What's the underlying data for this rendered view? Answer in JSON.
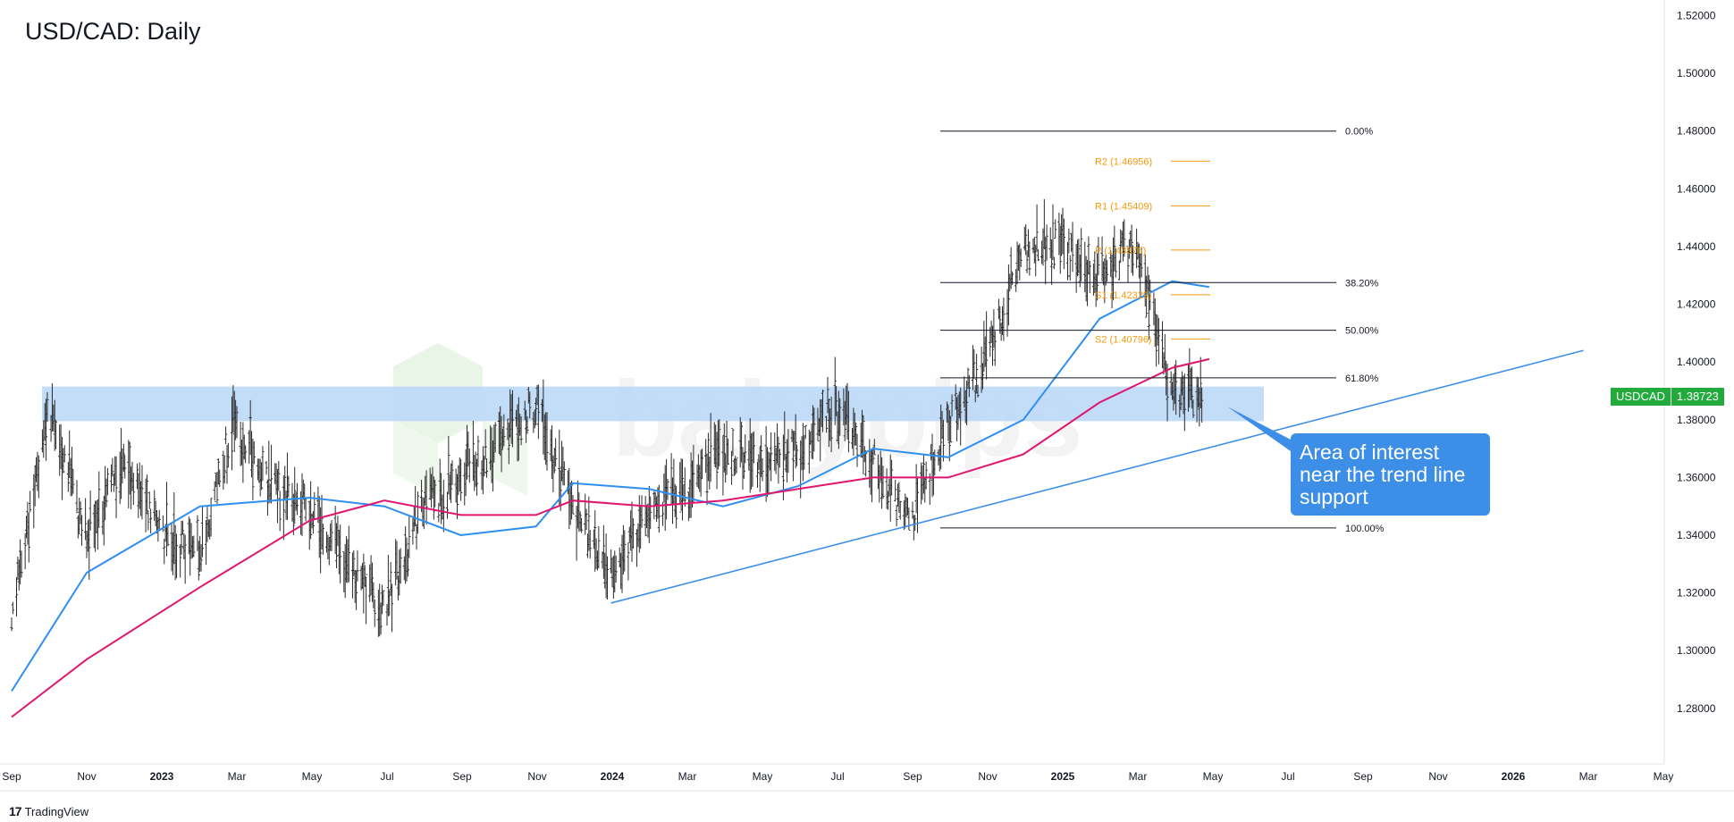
{
  "title": "USD/CAD: Daily",
  "brand": "TradingView",
  "callout_text": "Area of interest near the trend line support",
  "watermark": "babypips",
  "symbol": "USDCAD",
  "last_price": "1.38723",
  "colors": {
    "sma_fast": "#2f8ff0",
    "sma_slow": "#e0166e",
    "trendline": "#3c8fe8",
    "zone": "#b8d7f8",
    "fib": "#131722",
    "pivot": "#f59a0c",
    "candle": "#2a2a2a",
    "badge": "#22ab3c"
  },
  "chart_data": {
    "type": "line",
    "title": "USD/CAD: Daily",
    "ylim": [
      1.262,
      1.522
    ],
    "y_ticks": [
      "1.28000",
      "1.30000",
      "1.32000",
      "1.34000",
      "1.36000",
      "1.38000",
      "1.40000",
      "1.42000",
      "1.44000",
      "1.46000",
      "1.48000",
      "1.50000",
      "1.52000"
    ],
    "x_ticks": [
      "Sep",
      "Nov",
      "2023",
      "Mar",
      "May",
      "Jul",
      "Sep",
      "Nov",
      "2024",
      "Mar",
      "May",
      "Jul",
      "Sep",
      "Nov",
      "2025",
      "Mar",
      "May",
      "Jul",
      "Sep",
      "Nov",
      "2026",
      "Mar",
      "May"
    ],
    "price_series": {
      "name": "USDCAD",
      "approx_path": [
        {
          "x": "2022-09",
          "y": 1.31
        },
        {
          "x": "2022-10",
          "y": 1.385
        },
        {
          "x": "2022-11",
          "y": 1.34
        },
        {
          "x": "2022-12",
          "y": 1.365
        },
        {
          "x": "2023-01",
          "y": 1.34
        },
        {
          "x": "2023-02",
          "y": 1.335
        },
        {
          "x": "2023-03",
          "y": 1.38
        },
        {
          "x": "2023-04",
          "y": 1.355
        },
        {
          "x": "2023-05",
          "y": 1.35
        },
        {
          "x": "2023-06",
          "y": 1.33
        },
        {
          "x": "2023-07",
          "y": 1.315
        },
        {
          "x": "2023-08",
          "y": 1.35
        },
        {
          "x": "2023-09",
          "y": 1.36
        },
        {
          "x": "2023-10",
          "y": 1.37
        },
        {
          "x": "2023-11",
          "y": 1.385
        },
        {
          "x": "2023-12",
          "y": 1.35
        },
        {
          "x": "2024-01",
          "y": 1.325
        },
        {
          "x": "2024-02",
          "y": 1.35
        },
        {
          "x": "2024-03",
          "y": 1.355
        },
        {
          "x": "2024-04",
          "y": 1.37
        },
        {
          "x": "2024-05",
          "y": 1.365
        },
        {
          "x": "2024-06",
          "y": 1.37
        },
        {
          "x": "2024-07",
          "y": 1.385
        },
        {
          "x": "2024-08",
          "y": 1.365
        },
        {
          "x": "2024-09",
          "y": 1.345
        },
        {
          "x": "2024-10",
          "y": 1.38
        },
        {
          "x": "2024-11",
          "y": 1.4
        },
        {
          "x": "2024-12",
          "y": 1.44
        },
        {
          "x": "2025-01",
          "y": 1.44
        },
        {
          "x": "2025-02",
          "y": 1.43
        },
        {
          "x": "2025-03",
          "y": 1.44
        },
        {
          "x": "2025-04",
          "y": 1.39
        },
        {
          "x": "2025-04-25",
          "y": 1.387
        }
      ]
    },
    "series": [
      {
        "name": "SMA fast",
        "color": "#2f8ff0",
        "values": [
          {
            "x": "2022-09",
            "y": 1.286
          },
          {
            "x": "2022-11",
            "y": 1.327
          },
          {
            "x": "2023-02",
            "y": 1.35
          },
          {
            "x": "2023-05",
            "y": 1.353
          },
          {
            "x": "2023-07",
            "y": 1.35
          },
          {
            "x": "2023-09",
            "y": 1.34
          },
          {
            "x": "2023-11",
            "y": 1.343
          },
          {
            "x": "2023-12",
            "y": 1.358
          },
          {
            "x": "2024-02",
            "y": 1.356
          },
          {
            "x": "2024-04",
            "y": 1.35
          },
          {
            "x": "2024-06",
            "y": 1.357
          },
          {
            "x": "2024-08",
            "y": 1.37
          },
          {
            "x": "2024-10",
            "y": 1.367
          },
          {
            "x": "2024-12",
            "y": 1.38
          },
          {
            "x": "2025-02",
            "y": 1.415
          },
          {
            "x": "2025-04",
            "y": 1.428
          },
          {
            "x": "2025-05",
            "y": 1.426
          }
        ]
      },
      {
        "name": "SMA slow",
        "color": "#e0166e",
        "values": [
          {
            "x": "2022-09",
            "y": 1.277
          },
          {
            "x": "2022-11",
            "y": 1.297
          },
          {
            "x": "2023-02",
            "y": 1.322
          },
          {
            "x": "2023-05",
            "y": 1.345
          },
          {
            "x": "2023-07",
            "y": 1.352
          },
          {
            "x": "2023-09",
            "y": 1.347
          },
          {
            "x": "2023-11",
            "y": 1.347
          },
          {
            "x": "2023-12",
            "y": 1.352
          },
          {
            "x": "2024-02",
            "y": 1.35
          },
          {
            "x": "2024-04",
            "y": 1.352
          },
          {
            "x": "2024-06",
            "y": 1.356
          },
          {
            "x": "2024-08",
            "y": 1.36
          },
          {
            "x": "2024-10",
            "y": 1.36
          },
          {
            "x": "2024-12",
            "y": 1.368
          },
          {
            "x": "2025-02",
            "y": 1.386
          },
          {
            "x": "2025-04",
            "y": 1.398
          },
          {
            "x": "2025-05",
            "y": 1.401
          }
        ]
      }
    ],
    "fibonacci": [
      {
        "label": "0.00%",
        "value": 1.48
      },
      {
        "label": "38.20%",
        "value": 1.4275
      },
      {
        "label": "50.00%",
        "value": 1.411
      },
      {
        "label": "61.80%",
        "value": 1.3945
      },
      {
        "label": "100.00%",
        "value": 1.3425
      }
    ],
    "pivots": [
      {
        "label": "R2 (1.46956)",
        "value": 1.46956
      },
      {
        "label": "R1 (1.45409)",
        "value": 1.45409
      },
      {
        "label": "P (1.43876)",
        "value": 1.43876
      },
      {
        "label": "S1 (1.42329)",
        "value": 1.42329
      },
      {
        "label": "S2 (1.40796)",
        "value": 1.40796
      }
    ],
    "zone": {
      "low": 1.3795,
      "high": 1.3915,
      "from": "2022-10",
      "to": "2025-06"
    },
    "trendline": {
      "from": {
        "x": "2024-01",
        "y": 1.3165
      },
      "to": {
        "x": "2026-03",
        "y": 1.404
      }
    }
  }
}
